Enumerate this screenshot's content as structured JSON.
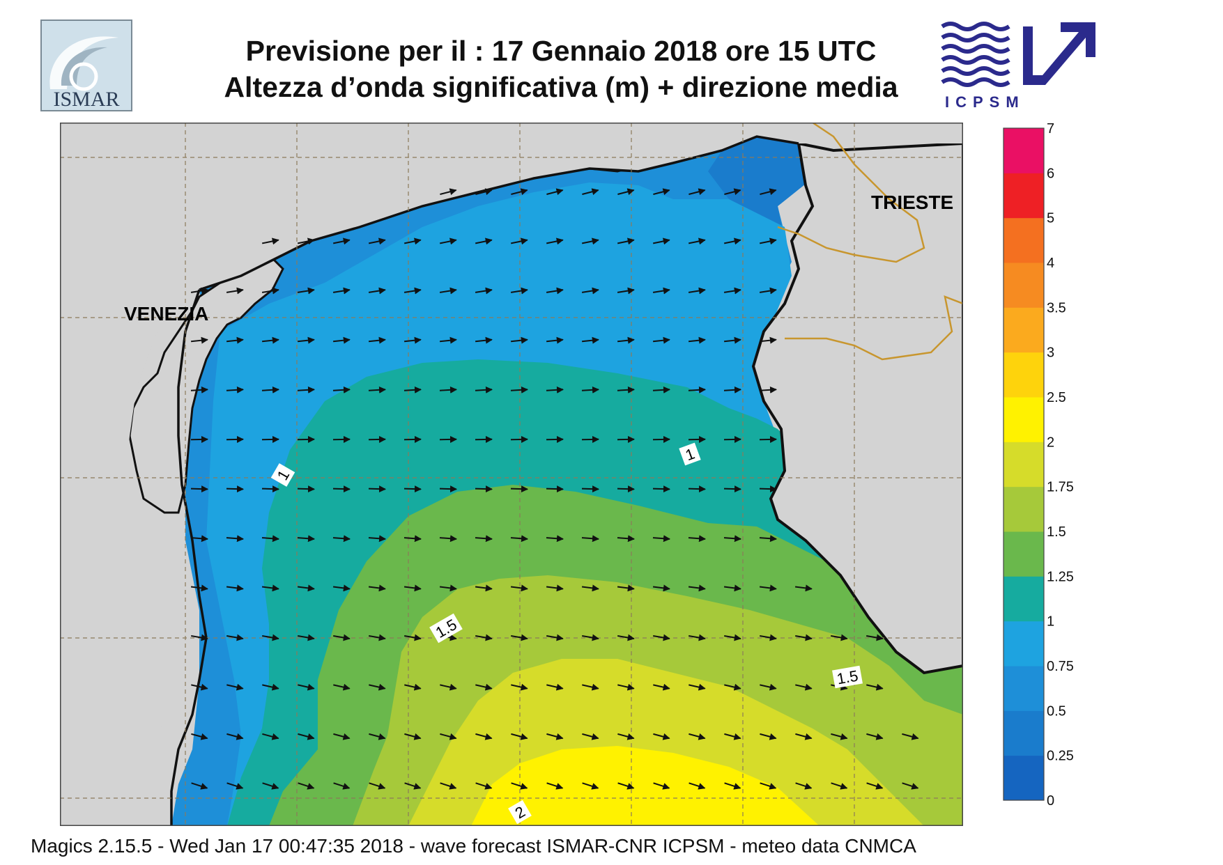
{
  "header": {
    "title_line1": "Previsione per il  :  17  Gennaio  2018    ore 15 UTC",
    "title_line2": "Altezza d’onda significativa (m) + direzione media",
    "left_logo_text": "ISMAR",
    "right_logo_text": "ICPSM"
  },
  "map": {
    "places": {
      "venezia": "VENEZIA",
      "trieste": "TRIESTE"
    },
    "contour_labels": [
      "1",
      "1",
      "1.5",
      "1.5",
      "2"
    ],
    "colors": {
      "land": "#d3d3d3",
      "frame": "#444444",
      "grid": "#8c7a5a",
      "border": "#c8962e",
      "coast": "#111111"
    }
  },
  "colorbar": {
    "tick_labels": [
      "7",
      "6",
      "5",
      "4",
      "3.5",
      "3",
      "2.5",
      "2",
      "1.75",
      "1.5",
      "1.25",
      "1",
      "0.75",
      "0.5",
      "0.25",
      "0"
    ],
    "colors": [
      "#1565c0",
      "#1a7ccc",
      "#1e8fd8",
      "#1ea3e0",
      "#16ab9f",
      "#6ab84c",
      "#a6c93a",
      "#d6dc2a",
      "#fff200",
      "#fed30c",
      "#fbaa1e",
      "#f68b21",
      "#f47020",
      "#ee2025",
      "#ea1064"
    ]
  },
  "footer": {
    "text": "Magics 2.15.5 - Wed Jan 17 00:47:35 2018 - wave forecast  ISMAR-CNR  ICPSM - meteo data   CNMCA"
  }
}
